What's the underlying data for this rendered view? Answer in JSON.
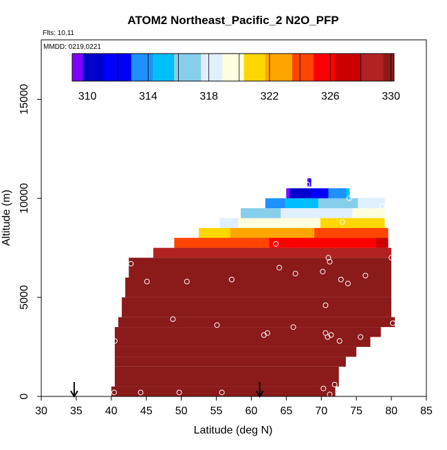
{
  "chart_data": {
    "type": "heatmap",
    "title": "ATOM2 Northeast_Pacific_2 N2O_PFP",
    "flights_label": "Flts: 10,11",
    "mmdd_label": "MMDD: 0219,0221",
    "xlabel": "Latitude (deg N)",
    "ylabel": "Altitude (m)",
    "xlim": [
      30,
      85
    ],
    "ylim": [
      0,
      18000
    ],
    "x_ticks": [
      "30",
      "35",
      "40",
      "45",
      "50",
      "55",
      "60",
      "65",
      "70",
      "75",
      "80",
      "85"
    ],
    "y_ticks": [
      "0",
      "5000",
      "10000",
      "15000"
    ],
    "colorbar": {
      "range": [
        309,
        330.2
      ],
      "tick_labels": [
        "310",
        "314",
        "318",
        "322",
        "326",
        "330"
      ],
      "colors": [
        "#7f00ff",
        "#0000cd",
        "#0000ff",
        "#1e90ff",
        "#00bfff",
        "#87ceeb",
        "#e0f0ff",
        "#ffffe0",
        "#ffd700",
        "#ffa500",
        "#ff4500",
        "#ff0000",
        "#cd0000",
        "#b22222",
        "#8b1a1a"
      ]
    },
    "bands": [
      {
        "alt_bottom": 10600,
        "alt_top": 11000,
        "lat_start": 68,
        "lat_end": 68.5,
        "value": 309
      },
      {
        "alt_bottom": 10000,
        "alt_top": 10500,
        "lat_start": 65,
        "lat_end": 74,
        "value": 311
      },
      {
        "alt_bottom": 9500,
        "alt_top": 10000,
        "lat_start": 62,
        "lat_end": 79,
        "value": 315
      },
      {
        "alt_bottom": 9000,
        "alt_top": 9500,
        "lat_start": 58.5,
        "lat_end": 79,
        "value": 318
      },
      {
        "alt_bottom": 8500,
        "alt_top": 9000,
        "lat_start": 55.5,
        "lat_end": 79,
        "value": 320
      },
      {
        "alt_bottom": 8000,
        "alt_top": 8500,
        "lat_start": 52.5,
        "lat_end": 79.5,
        "value": 323
      },
      {
        "alt_bottom": 7500,
        "alt_top": 8000,
        "lat_start": 49,
        "lat_end": 79.5,
        "value": 325
      },
      {
        "alt_bottom": 7000,
        "alt_top": 7500,
        "lat_start": 46,
        "lat_end": 80,
        "value": 328
      },
      {
        "alt_bottom": 6000,
        "alt_top": 7000,
        "lat_start": 42.5,
        "lat_end": 80,
        "value": 330
      },
      {
        "alt_bottom": 5000,
        "alt_top": 6000,
        "lat_start": 42,
        "lat_end": 80,
        "value": 330
      },
      {
        "alt_bottom": 4000,
        "alt_top": 5000,
        "lat_start": 41.5,
        "lat_end": 80,
        "value": 330
      },
      {
        "alt_bottom": 3500,
        "alt_top": 4000,
        "lat_start": 41,
        "lat_end": 80.5,
        "value": 330
      },
      {
        "alt_bottom": 3000,
        "alt_top": 3500,
        "lat_start": 40.5,
        "lat_end": 78.5,
        "value": 330
      },
      {
        "alt_bottom": 2500,
        "alt_top": 3000,
        "lat_start": 40.5,
        "lat_end": 77,
        "value": 330
      },
      {
        "alt_bottom": 2000,
        "alt_top": 2500,
        "lat_start": 40.5,
        "lat_end": 75,
        "value": 330
      },
      {
        "alt_bottom": 1500,
        "alt_top": 2000,
        "lat_start": 40.5,
        "lat_end": 73.5,
        "value": 330
      },
      {
        "alt_bottom": 500,
        "alt_top": 1500,
        "lat_start": 40.5,
        "lat_end": 72.5,
        "value": 330
      },
      {
        "alt_bottom": 0,
        "alt_top": 500,
        "lat_start": 40,
        "lat_end": 72,
        "value": 330
      }
    ],
    "samples": [
      {
        "lat": 68,
        "alt": 10700
      },
      {
        "lat": 74,
        "alt": 10000
      },
      {
        "lat": 78.7,
        "alt": 9600
      },
      {
        "lat": 73,
        "alt": 8800
      },
      {
        "lat": 63.5,
        "alt": 7700
      },
      {
        "lat": 80,
        "alt": 7000
      },
      {
        "lat": 71,
        "alt": 7000
      },
      {
        "lat": 71.2,
        "alt": 6800
      },
      {
        "lat": 42.8,
        "alt": 6700
      },
      {
        "lat": 64,
        "alt": 6500
      },
      {
        "lat": 70.2,
        "alt": 6300
      },
      {
        "lat": 76.3,
        "alt": 6100
      },
      {
        "lat": 66.3,
        "alt": 6200
      },
      {
        "lat": 57.2,
        "alt": 5900
      },
      {
        "lat": 72.8,
        "alt": 5900
      },
      {
        "lat": 45.1,
        "alt": 5800
      },
      {
        "lat": 50.8,
        "alt": 5800
      },
      {
        "lat": 73.8,
        "alt": 5700
      },
      {
        "lat": 70.6,
        "alt": 4600
      },
      {
        "lat": 48.8,
        "alt": 3900
      },
      {
        "lat": 80.2,
        "alt": 3700
      },
      {
        "lat": 55.1,
        "alt": 3600
      },
      {
        "lat": 66,
        "alt": 3500
      },
      {
        "lat": 62.3,
        "alt": 3200
      },
      {
        "lat": 61.8,
        "alt": 3100
      },
      {
        "lat": 70.6,
        "alt": 3200
      },
      {
        "lat": 71.4,
        "alt": 3100
      },
      {
        "lat": 70.9,
        "alt": 3000
      },
      {
        "lat": 75.6,
        "alt": 3000
      },
      {
        "lat": 40.5,
        "alt": 2800
      },
      {
        "lat": 72.6,
        "alt": 2800
      },
      {
        "lat": 71.9,
        "alt": 600
      },
      {
        "lat": 70.3,
        "alt": 400
      },
      {
        "lat": 40.4,
        "alt": 200
      },
      {
        "lat": 44.2,
        "alt": 200
      },
      {
        "lat": 49.7,
        "alt": 200
      },
      {
        "lat": 55.8,
        "alt": 200
      },
      {
        "lat": 71.2,
        "alt": 100
      }
    ],
    "markers": [
      {
        "lat": 34.7,
        "label": "arrow"
      },
      {
        "lat": 61.2,
        "label": "arrow"
      }
    ]
  }
}
